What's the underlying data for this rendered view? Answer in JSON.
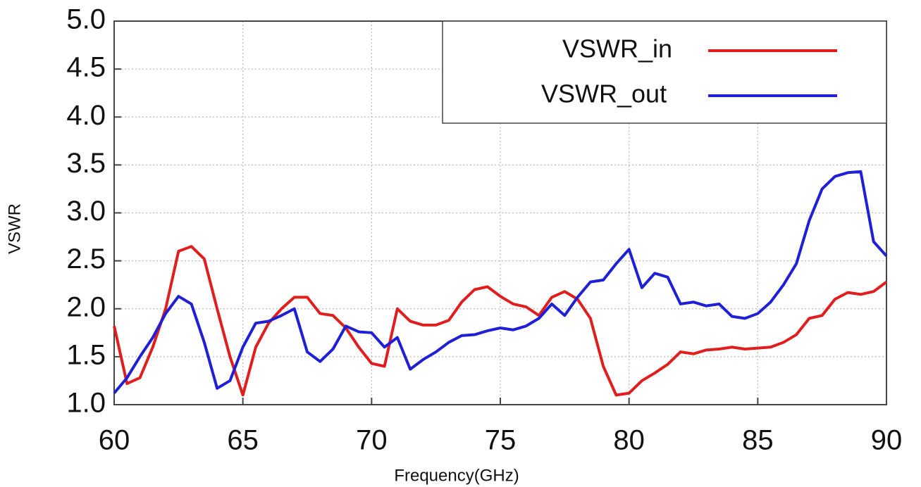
{
  "chart_data": {
    "type": "line",
    "xlabel": "Frequency(GHz)",
    "ylabel": "VSWR",
    "x": [
      60,
      60.5,
      61,
      61.5,
      62,
      62.5,
      63,
      63.5,
      64,
      64.5,
      65,
      65.5,
      66,
      66.5,
      67,
      67.5,
      68,
      68.5,
      69,
      69.5,
      70,
      70.5,
      71,
      71.5,
      72,
      72.5,
      73,
      73.5,
      74,
      74.5,
      75,
      75.5,
      76,
      76.5,
      77,
      77.5,
      78,
      78.5,
      79,
      79.5,
      80,
      80.5,
      81,
      81.5,
      82,
      82.5,
      83,
      83.5,
      84,
      84.5,
      85,
      85.5,
      86,
      86.5,
      87,
      87.5,
      88,
      88.5,
      89,
      89.5,
      90
    ],
    "series": [
      {
        "name": "VSWR_in",
        "color": "#e01e1e",
        "values": [
          1.82,
          1.22,
          1.28,
          1.6,
          2.0,
          2.6,
          2.65,
          2.52,
          2.0,
          1.5,
          1.1,
          1.6,
          1.85,
          2.0,
          2.12,
          2.12,
          1.95,
          1.93,
          1.8,
          1.6,
          1.43,
          1.4,
          2.0,
          1.87,
          1.83,
          1.83,
          1.88,
          2.07,
          2.2,
          2.23,
          2.13,
          2.05,
          2.02,
          1.93,
          2.12,
          2.18,
          2.1,
          1.9,
          1.4,
          1.1,
          1.12,
          1.25,
          1.33,
          1.42,
          1.55,
          1.53,
          1.57,
          1.58,
          1.6,
          1.58,
          1.59,
          1.6,
          1.65,
          1.73,
          1.9,
          1.93,
          2.1,
          2.17,
          2.15,
          2.18,
          2.28
        ]
      },
      {
        "name": "VSWR_out",
        "color": "#1f1fd6",
        "values": [
          1.12,
          1.28,
          1.5,
          1.7,
          1.95,
          2.13,
          2.05,
          1.65,
          1.17,
          1.25,
          1.6,
          1.85,
          1.87,
          1.93,
          2.0,
          1.55,
          1.45,
          1.58,
          1.82,
          1.76,
          1.75,
          1.6,
          1.7,
          1.37,
          1.47,
          1.55,
          1.65,
          1.72,
          1.73,
          1.77,
          1.8,
          1.78,
          1.82,
          1.9,
          2.05,
          1.93,
          2.12,
          2.28,
          2.3,
          2.47,
          2.62,
          2.22,
          2.37,
          2.33,
          2.05,
          2.07,
          2.03,
          2.05,
          1.92,
          1.9,
          1.95,
          2.07,
          2.25,
          2.47,
          2.92,
          3.25,
          3.38,
          3.42,
          3.43,
          2.7,
          2.55
        ]
      }
    ],
    "xlim": [
      60,
      90
    ],
    "xticks": [
      60,
      65,
      70,
      75,
      80,
      85,
      90
    ],
    "ylim": [
      1,
      5
    ],
    "yticks": [
      {
        "value": 1,
        "label": "1.0"
      },
      1.5,
      {
        "value": 2,
        "label": "2.0"
      },
      2.5,
      {
        "value": 3,
        "label": "3.0"
      },
      3.5,
      {
        "value": 4,
        "label": "4.0"
      },
      4.5,
      {
        "value": 5,
        "label": "5.0"
      }
    ],
    "grid": true,
    "legend": "upper right"
  }
}
